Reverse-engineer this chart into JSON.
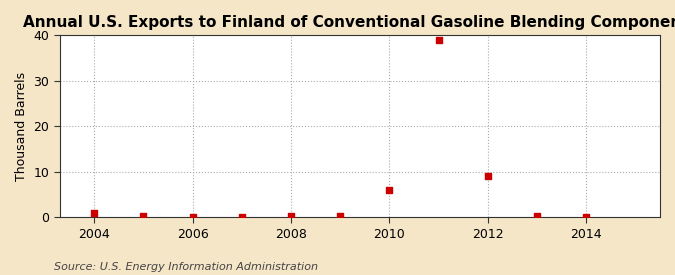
{
  "title": "Annual U.S. Exports to Finland of Conventional Gasoline Blending Components",
  "ylabel": "Thousand Barrels",
  "source": "Source: U.S. Energy Information Administration",
  "xlim": [
    2003.3,
    2015.5
  ],
  "ylim": [
    0,
    40
  ],
  "yticks": [
    0,
    10,
    20,
    30,
    40
  ],
  "xticks": [
    2004,
    2006,
    2008,
    2010,
    2012,
    2014
  ],
  "years": [
    2004,
    2005,
    2006,
    2007,
    2008,
    2009,
    2010,
    2011,
    2012,
    2013,
    2014
  ],
  "values": [
    1,
    0.3,
    0,
    0,
    0.3,
    0.3,
    6,
    39,
    9,
    0.3,
    0
  ],
  "marker_color": "#cc0000",
  "marker_size": 4,
  "plot_bg": "#ffffff",
  "outer_bg": "#f5e6c8",
  "grid_color": "#aaaaaa",
  "spine_color": "#333333",
  "title_fontsize": 11,
  "label_fontsize": 9,
  "tick_fontsize": 9,
  "source_fontsize": 8
}
